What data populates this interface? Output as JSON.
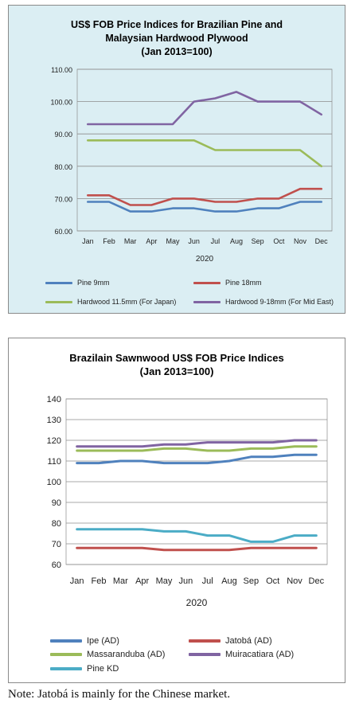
{
  "chart_data": [
    {
      "type": "line",
      "title": "US$ FOB Price Indices for Brazilian Pine and Malaysian Hardwood Plywood",
      "subtitle": "(Jan 2013=100)",
      "title_lines": [
        "US$ FOB Price Indices for Brazilian Pine and",
        "Malaysian Hardwood Plywood",
        "(Jan 2013=100)"
      ],
      "xlabel": "2020",
      "ylabel": "",
      "categories": [
        "Jan",
        "Feb",
        "Mar",
        "Apr",
        "May",
        "Jun",
        "Jul",
        "Aug",
        "Sep",
        "Oct",
        "Nov",
        "Dec"
      ],
      "ylim": [
        60,
        110
      ],
      "yticks": [
        "60.00",
        "70.00",
        "80.00",
        "90.00",
        "100.00",
        "110.00"
      ],
      "grid": true,
      "legend_position": "bottom",
      "series": [
        {
          "name": "Pine 9mm",
          "color": "#4f81bd",
          "values": [
            69,
            69,
            66,
            66,
            67,
            67,
            66,
            66,
            67,
            67,
            69,
            69
          ]
        },
        {
          "name": "Pine 18mm",
          "color": "#c0504d",
          "values": [
            71,
            71,
            68,
            68,
            70,
            70,
            69,
            69,
            70,
            70,
            73,
            73
          ]
        },
        {
          "name": "Hardwood 11.5mm (For Japan)",
          "color": "#9bbb59",
          "values": [
            88,
            88,
            88,
            88,
            88,
            88,
            85,
            85,
            85,
            85,
            85,
            80
          ]
        },
        {
          "name": "Hardwood 9-18mm (For Mid East)",
          "color": "#8064a2",
          "values": [
            93,
            93,
            93,
            93,
            93,
            100,
            101,
            103,
            100,
            100,
            100,
            96
          ]
        }
      ]
    },
    {
      "type": "line",
      "title": "Brazilain Sawnwood US$ FOB Price Indices",
      "subtitle": "(Jan 2013=100)",
      "title_lines": [
        "Brazilain Sawnwood US$ FOB Price Indices",
        "(Jan 2013=100)"
      ],
      "xlabel": "2020",
      "ylabel": "",
      "categories": [
        "Jan",
        "Feb",
        "Mar",
        "Apr",
        "May",
        "Jun",
        "Jul",
        "Aug",
        "Sep",
        "Oct",
        "Nov",
        "Dec"
      ],
      "ylim": [
        60,
        140
      ],
      "yticks": [
        "60",
        "70",
        "80",
        "90",
        "100",
        "110",
        "120",
        "130",
        "140"
      ],
      "grid": true,
      "legend_position": "bottom",
      "series": [
        {
          "name": "Ipe (AD)",
          "color": "#4f81bd",
          "values": [
            109,
            109,
            110,
            110,
            109,
            109,
            109,
            110,
            112,
            112,
            113,
            113
          ]
        },
        {
          "name": "Jatobá (AD)",
          "color": "#c0504d",
          "values": [
            68,
            68,
            68,
            68,
            67,
            67,
            67,
            67,
            68,
            68,
            68,
            68
          ]
        },
        {
          "name": "Massaranduba (AD)",
          "color": "#9bbb59",
          "values": [
            115,
            115,
            115,
            115,
            116,
            116,
            115,
            115,
            116,
            116,
            117,
            117
          ]
        },
        {
          "name": "Muiracatiara (AD)",
          "color": "#8064a2",
          "values": [
            117,
            117,
            117,
            117,
            118,
            118,
            119,
            119,
            119,
            119,
            120,
            120
          ]
        },
        {
          "name": "Pine KD",
          "color": "#4bacc6",
          "values": [
            77,
            77,
            77,
            77,
            76,
            76,
            74,
            74,
            71,
            71,
            74,
            74
          ]
        }
      ]
    }
  ],
  "note": "Note: Jatobá is mainly for the Chinese market."
}
